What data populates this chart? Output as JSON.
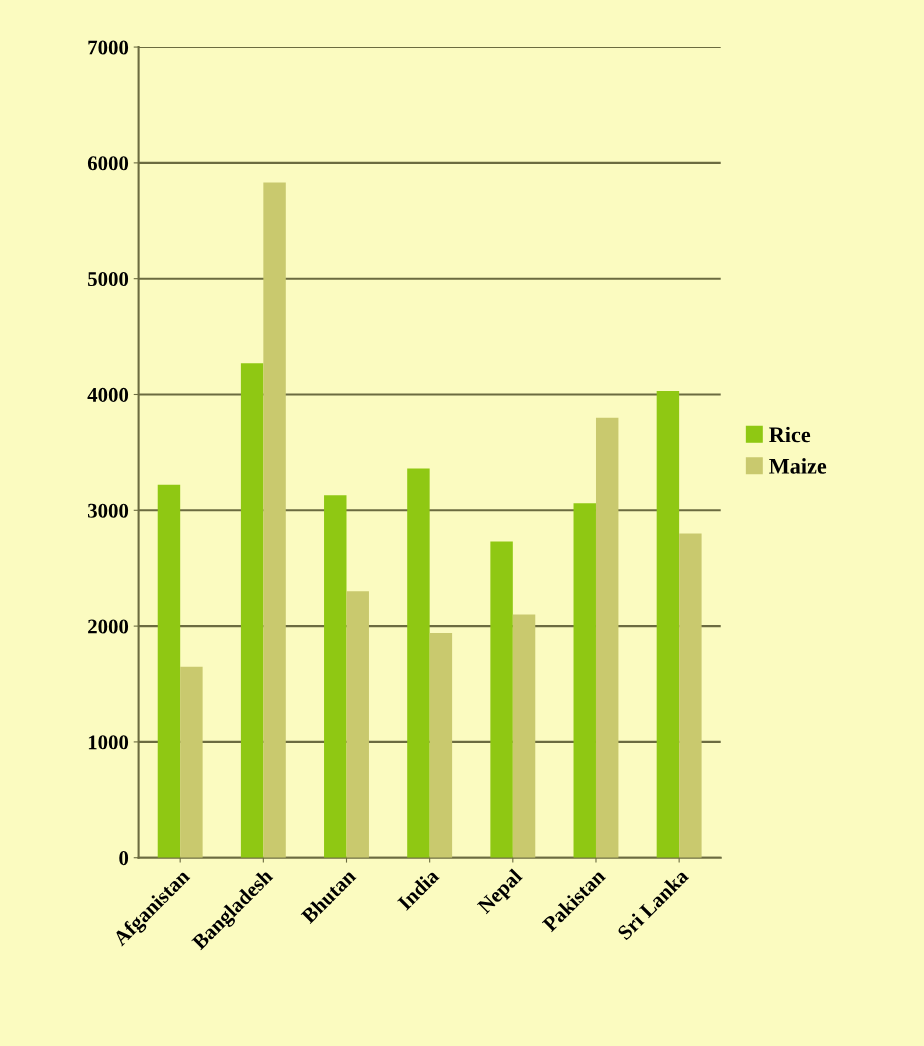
{
  "chart_data": {
    "type": "bar",
    "categories": [
      "Afganistan",
      "Bangladesh",
      "Bhutan",
      "India",
      "Nepal",
      "Pakistan",
      "Sri Lanka"
    ],
    "series": [
      {
        "name": "Rice",
        "color": "#8fc813",
        "values": [
          3220,
          4270,
          3130,
          3360,
          2730,
          3060,
          4030
        ]
      },
      {
        "name": "Maize",
        "color": "#c9c96e",
        "values": [
          1650,
          5830,
          2300,
          1940,
          2100,
          3800,
          2800
        ]
      }
    ],
    "ylim": [
      0,
      7000
    ],
    "yticks": [
      0,
      1000,
      2000,
      3000,
      4000,
      5000,
      6000,
      7000
    ],
    "grid": "y",
    "legend": "right"
  }
}
